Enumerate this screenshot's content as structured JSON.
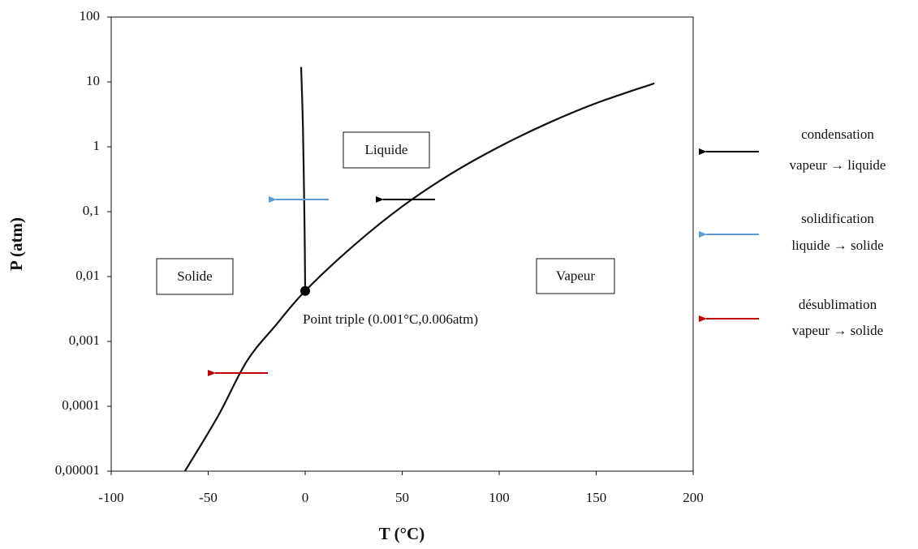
{
  "chart_data": {
    "type": "line",
    "xlabel": "T (°C)",
    "ylabel": "P (atm)",
    "xlim": [
      -100,
      200
    ],
    "xticks": [
      -100,
      -50,
      0,
      50,
      100,
      150,
      200
    ],
    "ylim": [
      1e-05,
      100
    ],
    "yscale": "log",
    "yticks": [
      {
        "value": 1e-05,
        "label": "0,00001"
      },
      {
        "value": 0.0001,
        "label": "0,0001"
      },
      {
        "value": 0.001,
        "label": "0,001"
      },
      {
        "value": 0.01,
        "label": "0,01"
      },
      {
        "value": 0.1,
        "label": "0,1"
      },
      1,
      10,
      100
    ],
    "grid": false,
    "series": [
      {
        "color": "#111111",
        "x": [
          -62,
          -45,
          -30,
          -15,
          0.001,
          25,
          50,
          75,
          100,
          125,
          150,
          180
        ],
        "values": [
          1e-05,
          7e-05,
          0.0005,
          0.0018,
          0.006,
          0.03,
          0.12,
          0.38,
          1,
          2.3,
          4.7,
          9.5
        ]
      },
      {
        "color": "#111111",
        "x": [
          0.001,
          -0.3,
          -0.8,
          -1.3,
          -2.1
        ],
        "values": [
          0.006,
          0.05,
          0.5,
          3,
          17
        ]
      }
    ],
    "triple_point": {
      "x": 0.001,
      "y": 0.006,
      "label": "Point triple (0.001°C,0.006atm)"
    },
    "regions": [
      {
        "label": "Liquide",
        "color": "#2f7fc8"
      },
      {
        "label": "Solide",
        "color": "#cc2020"
      },
      {
        "label": "Vapeur",
        "color": "#111111"
      }
    ],
    "legend": [
      {
        "name": "condensation",
        "detail": "vapeur → liquide",
        "color": "#000000"
      },
      {
        "name": "solidification",
        "detail": "liquide → solide",
        "color": "#5b9bd5"
      },
      {
        "name": "désublimation",
        "detail": "vapeur → solide",
        "color": "#c00000"
      }
    ]
  }
}
